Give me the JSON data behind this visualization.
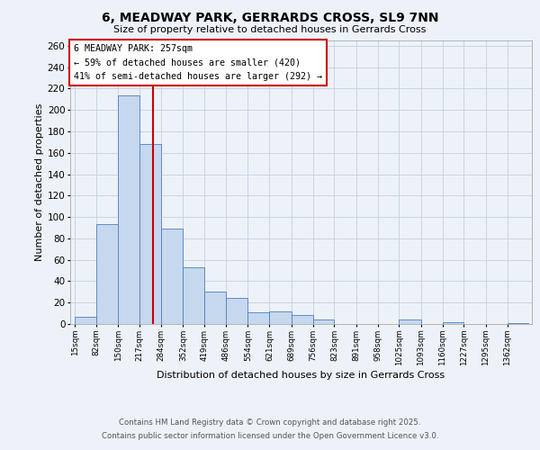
{
  "title": "6, MEADWAY PARK, GERRARDS CROSS, SL9 7NN",
  "subtitle": "Size of property relative to detached houses in Gerrards Cross",
  "xlabel": "Distribution of detached houses by size in Gerrards Cross",
  "ylabel": "Number of detached properties",
  "bin_labels": [
    "15sqm",
    "82sqm",
    "150sqm",
    "217sqm",
    "284sqm",
    "352sqm",
    "419sqm",
    "486sqm",
    "554sqm",
    "621sqm",
    "689sqm",
    "756sqm",
    "823sqm",
    "891sqm",
    "958sqm",
    "1025sqm",
    "1093sqm",
    "1160sqm",
    "1227sqm",
    "1295sqm",
    "1362sqm"
  ],
  "bar_values": [
    7,
    93,
    214,
    168,
    89,
    53,
    30,
    24,
    11,
    12,
    8,
    4,
    0,
    0,
    0,
    4,
    0,
    2,
    0,
    0,
    1
  ],
  "bar_color": "#c5d8ee",
  "bar_edge_color": "#4f7ec0",
  "grid_color": "#c8d4e4",
  "background_color": "#edf2f9",
  "vline_color": "#cc0000",
  "annotation_title": "6 MEADWAY PARK: 257sqm",
  "annotation_line2": "← 59% of detached houses are smaller (420)",
  "annotation_line3": "41% of semi-detached houses are larger (292) →",
  "annotation_box_facecolor": "#ffffff",
  "annotation_box_edgecolor": "#cc0000",
  "ylim": [
    0,
    265
  ],
  "yticks": [
    0,
    20,
    40,
    60,
    80,
    100,
    120,
    140,
    160,
    180,
    200,
    220,
    240,
    260
  ],
  "footer_line1": "Contains HM Land Registry data © Crown copyright and database right 2025.",
  "footer_line2": "Contains public sector information licensed under the Open Government Licence v3.0.",
  "property_sqm": 257
}
